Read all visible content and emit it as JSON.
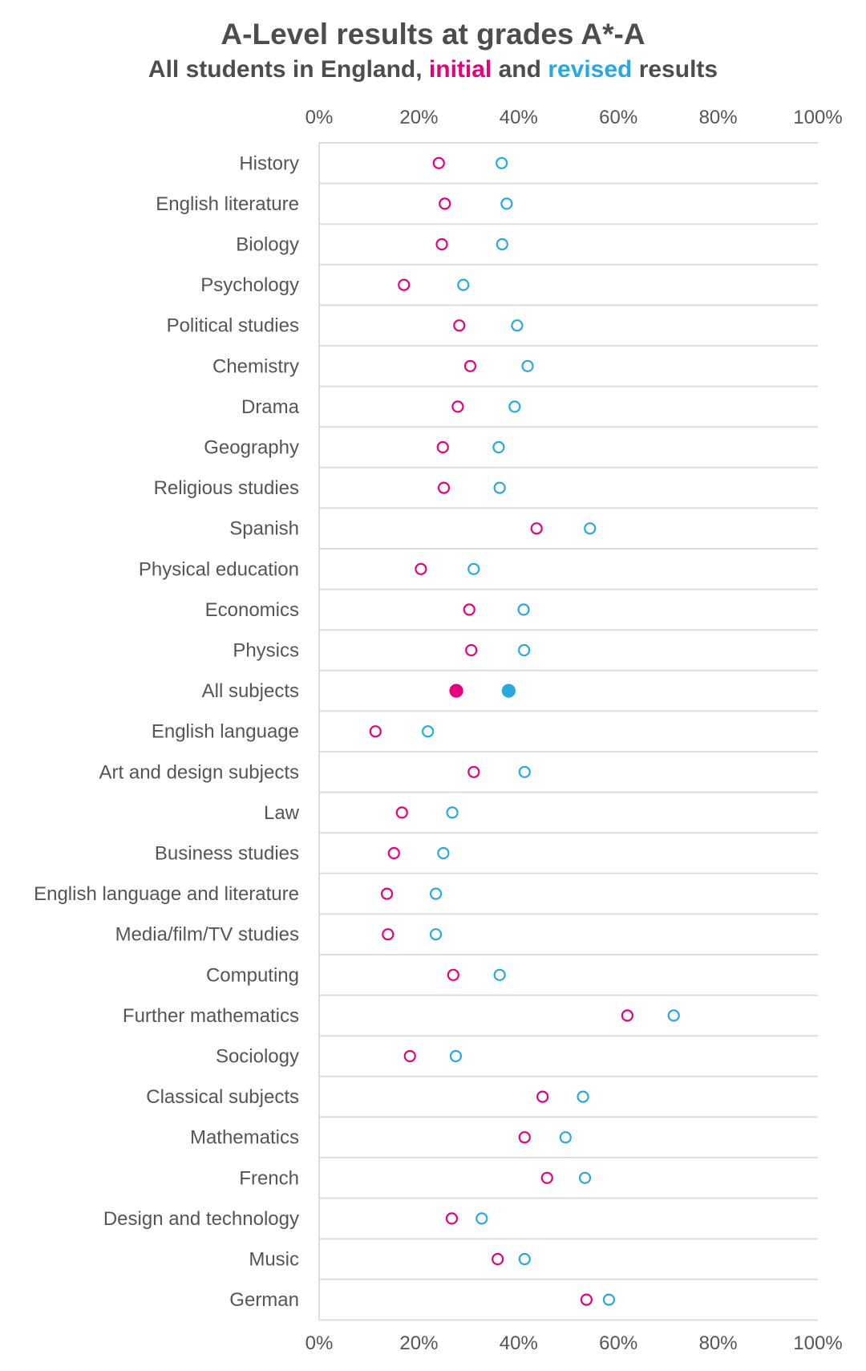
{
  "title": "A-Level results at grades A*-A",
  "subtitle": {
    "prefix": "All students in England, ",
    "initial": "initial",
    "middle": " and ",
    "revised": "revised",
    "suffix": " results"
  },
  "colors": {
    "initial": "#e6007e",
    "revised": "#29a8e0",
    "grid": "#dddddd",
    "text": "#555555"
  },
  "chart_data": {
    "type": "scatter",
    "title": "A-Level results at grades A*-A",
    "subtitle": "All students in England, initial and revised results",
    "xlim": [
      0,
      100
    ],
    "x_ticks": [
      "0%",
      "20%",
      "40%",
      "60%",
      "80%",
      "100%"
    ],
    "x_axis_position": "top and bottom",
    "grid": "horizontal row separators",
    "categories": [
      "History",
      "English literature",
      "Biology",
      "Psychology",
      "Political studies",
      "Chemistry",
      "Drama",
      "Geography",
      "Religious studies",
      "Spanish",
      "Physical education",
      "Economics",
      "Physics",
      "All subjects",
      "English language",
      "Art and design subjects",
      "Law",
      "Business studies",
      "English language and literature",
      "Media/film/TV studies",
      "Computing",
      "Further mathematics",
      "Sociology",
      "Classical subjects",
      "Mathematics",
      "French",
      "Design and technology",
      "Music",
      "German"
    ],
    "highlight_category": "All subjects",
    "series": [
      {
        "name": "initial",
        "color": "#e6007e",
        "values": [
          24,
          25.2,
          24.6,
          17,
          28.1,
          30.3,
          27.8,
          24.8,
          25,
          43.6,
          20.4,
          30.1,
          30.5,
          27.5,
          11.3,
          31,
          16.6,
          15,
          13.6,
          13.8,
          26.9,
          61.8,
          18.2,
          44.8,
          41.2,
          45.7,
          26.6,
          35.8,
          53.6
        ]
      },
      {
        "name": "revised",
        "color": "#29a8e0",
        "values": [
          36.6,
          37.6,
          36.7,
          28.9,
          39.7,
          41.8,
          39.2,
          36,
          36.2,
          54.3,
          31,
          41,
          41.1,
          38,
          21.8,
          41.2,
          26.7,
          24.9,
          23.4,
          23.4,
          36.2,
          71.1,
          27.4,
          52.9,
          49.4,
          53.3,
          32.6,
          41.2,
          58.1
        ]
      }
    ]
  }
}
